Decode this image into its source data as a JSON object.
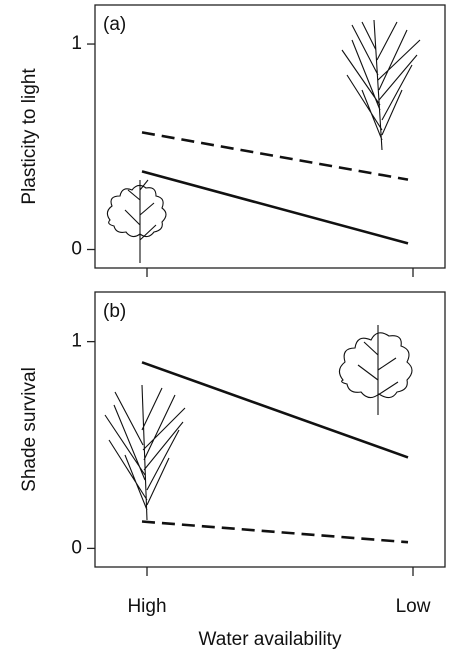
{
  "chart_data": [
    {
      "type": "line",
      "annotation": "(a)",
      "y_label": "Plasticity to light",
      "categories": [
        null,
        null
      ],
      "ylim": [
        -0.09,
        1.19
      ],
      "yticks": [
        0,
        1
      ],
      "series": [
        {
          "color": "#111111",
          "dash": false,
          "values": [
            0.38,
            0.03
          ]
        },
        {
          "color": "#111111",
          "dash": true,
          "values": [
            0.57,
            0.34
          ]
        }
      ]
    },
    {
      "type": "line",
      "annotation": "(b)",
      "y_label": "Shade survival",
      "x_label": "Water availability",
      "categories": [
        "High",
        "Low"
      ],
      "ylim": [
        -0.09,
        1.24
      ],
      "yticks": [
        0,
        1
      ],
      "series": [
        {
          "color": "#111111",
          "dash": false,
          "values": [
            0.9,
            0.44
          ]
        },
        {
          "color": "#111111",
          "dash": true,
          "values": [
            0.13,
            0.03
          ]
        }
      ]
    }
  ]
}
